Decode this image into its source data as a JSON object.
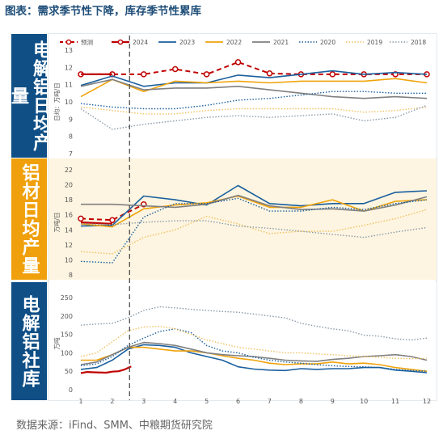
{
  "title": "图表：需求季节性下降，库存季节性累库",
  "source": "数据来源：iFind、SMM、中粮期货研究院",
  "colors": {
    "forecast": "#c00000",
    "y2024": "#c00000",
    "y2023": "#1a5f9e",
    "y2022": "#f0a30a",
    "y2021": "#7f7f7f",
    "y2020": "#1a5f9e",
    "y2019": "#f0c060",
    "y2018": "#8a9aa8",
    "band_blue": "#0f4f86",
    "band_orange": "#f0a00c",
    "orange_bg": "#fdf5e1"
  },
  "legend": [
    "预测",
    "2024",
    "2023",
    "2022",
    "2021",
    "2020",
    "2019",
    "2018"
  ],
  "x_ticks": [
    "1",
    "2",
    "3",
    "4",
    "5",
    "6",
    "7",
    "8",
    "9",
    "10",
    "11",
    "12"
  ],
  "marker_x": 2.55,
  "chart_data": [
    {
      "id": "primary-al",
      "type": "line",
      "panel_label": "电解铝日均产量",
      "ylabel": "日均：万吨/日",
      "ylim": [
        7,
        13
      ],
      "yticks": [
        "7",
        "8",
        "9",
        "10",
        "11",
        "12",
        "13"
      ],
      "series": [
        {
          "name": "预测",
          "style": "dash-marker",
          "x": [
            1,
            2,
            3,
            4,
            5,
            6,
            7,
            8,
            9,
            10,
            11,
            12
          ],
          "y": [
            11.6,
            11.6,
            11.6,
            11.9,
            11.6,
            12.3,
            11.65,
            11.6,
            11.6,
            11.6,
            11.6,
            11.6
          ]
        },
        {
          "name": "2024",
          "style": "solid-thick",
          "x": [
            1,
            2
          ],
          "y": [
            11.6,
            11.6
          ]
        },
        {
          "name": "2023",
          "style": "solid",
          "x": [
            1,
            2,
            3,
            4,
            5,
            6,
            7,
            8,
            9,
            10,
            11,
            12
          ],
          "y": [
            10.95,
            11.5,
            10.9,
            11.1,
            11.1,
            11.55,
            11.4,
            11.6,
            11.8,
            11.6,
            11.7,
            11.6
          ]
        },
        {
          "name": "2022",
          "style": "solid",
          "x": [
            1,
            2,
            3,
            4,
            5,
            6,
            7,
            8,
            9,
            10,
            11,
            12
          ],
          "y": [
            10.3,
            11.3,
            10.6,
            11.2,
            11.1,
            11.2,
            11.1,
            11.2,
            11.2,
            11.2,
            11.35,
            11.1
          ]
        },
        {
          "name": "2021",
          "style": "solid",
          "x": [
            1,
            2,
            3,
            4,
            5,
            6,
            7,
            8,
            9,
            10,
            11,
            12
          ],
          "y": [
            10.9,
            11.3,
            10.7,
            10.8,
            10.8,
            10.9,
            10.7,
            10.5,
            10.3,
            10.2,
            10.3,
            10.2
          ]
        },
        {
          "name": "2020",
          "style": "dot",
          "x": [
            1,
            2,
            3,
            4,
            5,
            6,
            7,
            8,
            9,
            10,
            11,
            12
          ],
          "y": [
            9.9,
            9.7,
            9.6,
            9.6,
            9.8,
            10.1,
            10.2,
            10.4,
            10.6,
            10.6,
            10.5,
            10.5
          ]
        },
        {
          "name": "2019",
          "style": "dot",
          "x": [
            1,
            2,
            3,
            4,
            5,
            6,
            7,
            8,
            9,
            10,
            11,
            12
          ],
          "y": [
            9.7,
            9.5,
            9.3,
            9.3,
            9.5,
            9.6,
            9.6,
            9.6,
            9.6,
            9.4,
            9.5,
            9.7
          ]
        },
        {
          "name": "2018",
          "style": "dot",
          "x": [
            1,
            2,
            3,
            4,
            5,
            6,
            7,
            8,
            9,
            10,
            11,
            12
          ],
          "y": [
            9.6,
            8.4,
            8.7,
            8.9,
            9.1,
            9.2,
            9.1,
            9.2,
            9.3,
            8.9,
            9.1,
            9.8
          ]
        }
      ]
    },
    {
      "id": "alu-product",
      "type": "line",
      "panel_label": "铝材日均产量",
      "ylabel": "万吨/日",
      "ylim": [
        8,
        22
      ],
      "yticks": [
        "8",
        "10",
        "12",
        "14",
        "16",
        "18",
        "20",
        "22"
      ],
      "series": [
        {
          "name": "预测",
          "style": "dash-marker",
          "x": [
            1,
            2,
            3
          ],
          "y": [
            15.5,
            15.3,
            17.4
          ]
        },
        {
          "name": "2024",
          "style": "solid-thick",
          "x": [
            1,
            2
          ],
          "y": [
            15.0,
            14.8
          ]
        },
        {
          "name": "2023",
          "style": "solid",
          "x": [
            1,
            2,
            3,
            4,
            5,
            6,
            7,
            8,
            9,
            10,
            11,
            12
          ],
          "y": [
            14.5,
            14.6,
            18.5,
            18.0,
            17.3,
            19.9,
            17.5,
            17.2,
            17.5,
            17.5,
            19.0,
            19.2
          ]
        },
        {
          "name": "2022",
          "style": "solid",
          "x": [
            1,
            2,
            3,
            4,
            5,
            6,
            7,
            8,
            9,
            10,
            11,
            12
          ],
          "y": [
            14.8,
            14.4,
            16.8,
            17.3,
            17.6,
            18.5,
            17.0,
            17.0,
            18.0,
            16.5,
            17.8,
            18.0
          ]
        },
        {
          "name": "2021",
          "style": "solid",
          "x": [
            1,
            2,
            3,
            4,
            5,
            6,
            7,
            8,
            9,
            10,
            11,
            12
          ],
          "y": [
            17.4,
            17.4,
            17.2,
            17.0,
            17.4,
            18.6,
            17.2,
            16.7,
            16.8,
            16.5,
            17.3,
            18.4
          ]
        },
        {
          "name": "2020",
          "style": "dot",
          "x": [
            1,
            2,
            3,
            4,
            5,
            6,
            7,
            8,
            9,
            10,
            11,
            12
          ],
          "y": [
            9.8,
            9.6,
            15.7,
            17.5,
            17.5,
            18.2,
            16.5,
            16.5,
            17.0,
            16.7,
            17.5,
            18.0
          ]
        },
        {
          "name": "2019",
          "style": "dot",
          "x": [
            1,
            2,
            3,
            4,
            5,
            6,
            7,
            8,
            9,
            10,
            11,
            12
          ],
          "y": [
            11.1,
            10.8,
            13.0,
            14.0,
            15.8,
            14.8,
            13.5,
            13.8,
            13.8,
            14.6,
            15.5,
            16.7
          ]
        },
        {
          "name": "2018",
          "style": "dot",
          "x": [
            1,
            2,
            3,
            4,
            5,
            6,
            7,
            8,
            9,
            10,
            11,
            12
          ],
          "y": [
            14.8,
            14.7,
            15.0,
            15.2,
            15.2,
            14.5,
            14.2,
            13.8,
            13.4,
            13.0,
            13.7,
            14.3
          ]
        }
      ]
    },
    {
      "id": "primary-al-stock",
      "type": "line",
      "panel_label": "电解铝社库",
      "ylabel": "万吨",
      "ylim": [
        0,
        250
      ],
      "yticks": [
        "0",
        "50",
        "100",
        "150",
        "200",
        "250"
      ],
      "series": [
        {
          "name": "2024",
          "style": "solid-thick",
          "x": [
            1.0,
            1.2,
            1.5,
            1.8,
            2.0,
            2.2,
            2.4,
            2.6
          ],
          "y": [
            45,
            48,
            47,
            46,
            49,
            50,
            55,
            63
          ]
        },
        {
          "name": "2023",
          "style": "solid",
          "x": [
            1.0,
            1.5,
            2.0,
            2.5,
            3.0,
            3.5,
            4.0,
            4.5,
            5.0,
            5.5,
            6.0,
            6.5,
            7.0,
            7.5,
            8.0,
            8.5,
            9.0,
            9.5,
            10.0,
            10.5,
            11.0,
            11.5,
            12.0
          ],
          "y": [
            55,
            60,
            80,
            110,
            122,
            120,
            115,
            100,
            90,
            80,
            62,
            56,
            53,
            52,
            57,
            55,
            57,
            57,
            60,
            60,
            53,
            50,
            46
          ]
        },
        {
          "name": "2022",
          "style": "solid",
          "x": [
            1.0,
            1.5,
            2.0,
            2.5,
            3.0,
            3.5,
            4.0,
            4.5,
            5.0,
            5.5,
            6.0,
            6.5,
            7.0,
            7.5,
            8.0,
            8.5,
            9.0,
            9.5,
            10.0,
            10.5,
            11.0,
            11.5,
            12.0
          ],
          "y": [
            80,
            80,
            95,
            115,
            115,
            110,
            105,
            105,
            100,
            92,
            85,
            80,
            72,
            68,
            70,
            70,
            75,
            70,
            72,
            68,
            60,
            55,
            50
          ]
        },
        {
          "name": "2021",
          "style": "solid",
          "x": [
            1.0,
            1.5,
            2.0,
            2.5,
            3.0,
            3.5,
            4.0,
            4.5,
            5.0,
            5.5,
            6.0,
            6.5,
            7.0,
            7.5,
            8.0,
            8.5,
            9.0,
            9.5,
            10.0,
            10.5,
            11.0,
            11.5,
            12.0
          ],
          "y": [
            68,
            75,
            95,
            115,
            128,
            125,
            120,
            110,
            100,
            95,
            92,
            90,
            85,
            80,
            78,
            77,
            82,
            85,
            90,
            92,
            95,
            90,
            80
          ]
        },
        {
          "name": "2020",
          "style": "dot",
          "x": [
            1.0,
            1.5,
            2.0,
            2.5,
            3.0,
            3.5,
            4.0,
            4.5,
            5.0,
            5.5,
            6.0,
            6.5,
            7.0,
            7.5,
            8.0,
            8.5,
            9.0,
            9.5,
            10.0,
            10.5,
            11.0,
            11.5,
            12.0
          ],
          "y": [
            65,
            70,
            90,
            120,
            140,
            158,
            165,
            155,
            120,
            105,
            100,
            88,
            80,
            75,
            72,
            68,
            65,
            63,
            62,
            60,
            55,
            52,
            50
          ]
        },
        {
          "name": "2019",
          "style": "dot",
          "x": [
            1.0,
            1.5,
            2.0,
            2.5,
            3.0,
            3.5,
            4.0,
            4.5,
            5.0,
            5.5,
            6.0,
            6.5,
            7.0,
            7.5,
            8.0,
            8.5,
            9.0,
            9.5,
            10.0,
            10.5,
            11.0,
            11.5,
            12.0
          ],
          "y": [
            90,
            100,
            130,
            160,
            170,
            172,
            165,
            150,
            135,
            125,
            115,
            110,
            105,
            100,
            100,
            97,
            95,
            92,
            90,
            88,
            85,
            84,
            85
          ]
        },
        {
          "name": "2018",
          "style": "dot",
          "x": [
            1.0,
            1.5,
            2.0,
            2.5,
            3.0,
            3.5,
            4.0,
            4.5,
            5.0,
            5.5,
            6.0,
            6.5,
            7.0,
            7.5,
            8.0,
            8.5,
            9.0,
            9.5,
            10.0,
            10.5,
            11.0,
            11.5,
            12.0
          ],
          "y": [
            175,
            178,
            180,
            195,
            215,
            225,
            222,
            218,
            215,
            212,
            210,
            205,
            200,
            195,
            180,
            172,
            165,
            160,
            148,
            145,
            138,
            135,
            140
          ]
        }
      ]
    }
  ]
}
